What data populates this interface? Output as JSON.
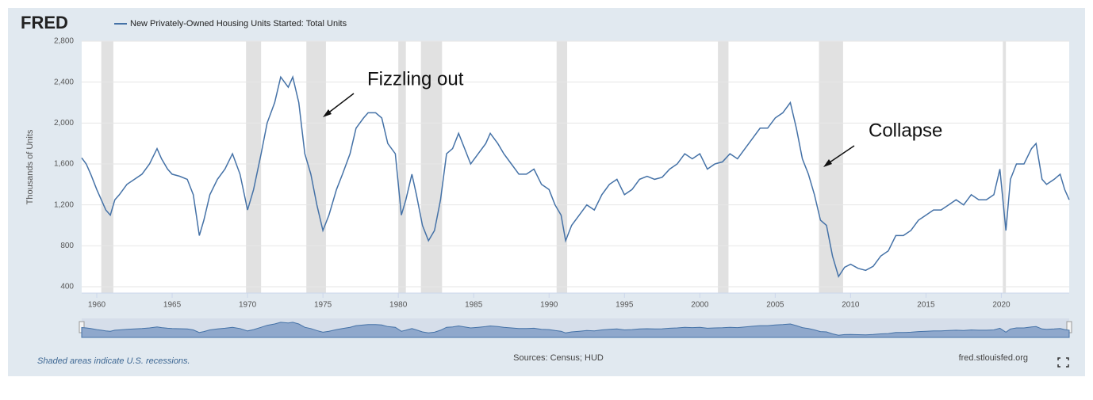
{
  "logo": "FRED",
  "chart_data": {
    "type": "line",
    "legend": "New Privately-Owned Housing Units Started: Total Units",
    "ylabel": "Thousands of Units",
    "color": "#4572a7",
    "grid": true,
    "xlim": [
      1959,
      2024.5
    ],
    "xticks": [
      1960,
      1965,
      1970,
      1975,
      1980,
      1985,
      1990,
      1995,
      2000,
      2005,
      2010,
      2015,
      2020
    ],
    "ylim": [
      400,
      2800
    ],
    "yticks": [
      400,
      800,
      {
        "value": 1200,
        "label": "1,200"
      },
      {
        "value": 1600,
        "label": "1,600"
      },
      {
        "value": 2000,
        "label": "2,000"
      },
      {
        "value": 2400,
        "label": "2,400"
      },
      {
        "value": 2800,
        "label": "2,800"
      }
    ],
    "recessions": [
      [
        1960.3,
        1961.1
      ],
      [
        1969.9,
        1970.9
      ],
      [
        1973.9,
        1975.2
      ],
      [
        1980.0,
        1980.5
      ],
      [
        1981.5,
        1982.9
      ],
      [
        1990.5,
        1991.2
      ],
      [
        2001.2,
        2001.9
      ],
      [
        2007.9,
        2009.5
      ],
      [
        2020.1,
        2020.3
      ]
    ],
    "annotations": [
      {
        "text": "Fizzling out"
      },
      {
        "text": "Collapse"
      }
    ],
    "x": [
      1959.0,
      1959.3,
      1959.6,
      1960.0,
      1960.3,
      1960.6,
      1960.9,
      1961.2,
      1961.5,
      1962.0,
      1962.5,
      1963.0,
      1963.5,
      1964.0,
      1964.3,
      1964.7,
      1965.0,
      1965.5,
      1966.0,
      1966.4,
      1966.8,
      1967.1,
      1967.5,
      1968.0,
      1968.5,
      1969.0,
      1969.5,
      1970.0,
      1970.4,
      1970.9,
      1971.3,
      1971.8,
      1972.2,
      1972.7,
      1973.0,
      1973.4,
      1973.8,
      1974.2,
      1974.6,
      1975.0,
      1975.4,
      1975.9,
      1976.3,
      1976.8,
      1977.2,
      1977.7,
      1978.0,
      1978.5,
      1978.9,
      1979.3,
      1979.8,
      1980.2,
      1980.5,
      1980.9,
      1981.2,
      1981.6,
      1982.0,
      1982.4,
      1982.8,
      1983.2,
      1983.6,
      1984.0,
      1984.4,
      1984.8,
      1985.3,
      1985.8,
      1986.1,
      1986.6,
      1987.0,
      1987.5,
      1988.0,
      1988.5,
      1989.0,
      1989.5,
      1990.0,
      1990.4,
      1990.8,
      1991.1,
      1991.5,
      1992.0,
      1992.5,
      1993.0,
      1993.5,
      1994.0,
      1994.5,
      1995.0,
      1995.5,
      1996.0,
      1996.5,
      1997.0,
      1997.5,
      1998.0,
      1998.5,
      1999.0,
      1999.5,
      2000.0,
      2000.5,
      2001.0,
      2001.5,
      2002.0,
      2002.5,
      2003.0,
      2003.5,
      2004.0,
      2004.5,
      2005.0,
      2005.5,
      2006.0,
      2006.4,
      2006.8,
      2007.2,
      2007.6,
      2008.0,
      2008.4,
      2008.8,
      2009.2,
      2009.6,
      2010.0,
      2010.5,
      2011.0,
      2011.5,
      2012.0,
      2012.5,
      2013.0,
      2013.5,
      2014.0,
      2014.5,
      2015.0,
      2015.5,
      2016.0,
      2016.5,
      2017.0,
      2017.5,
      2018.0,
      2018.5,
      2019.0,
      2019.5,
      2019.9,
      2020.3,
      2020.6,
      2021.0,
      2021.5,
      2022.0,
      2022.3,
      2022.7,
      2023.0,
      2023.5,
      2023.9,
      2024.2,
      2024.5
    ],
    "values": [
      1660,
      1600,
      1500,
      1350,
      1250,
      1150,
      1100,
      1250,
      1300,
      1400,
      1450,
      1500,
      1600,
      1750,
      1650,
      1550,
      1500,
      1480,
      1450,
      1300,
      900,
      1050,
      1300,
      1450,
      1550,
      1700,
      1500,
      1150,
      1350,
      1700,
      2000,
      2200,
      2450,
      2350,
      2450,
      2200,
      1700,
      1500,
      1200,
      950,
      1100,
      1350,
      1500,
      1700,
      1950,
      2050,
      2100,
      2100,
      2050,
      1800,
      1700,
      1100,
      1250,
      1500,
      1300,
      1000,
      850,
      950,
      1250,
      1700,
      1750,
      1900,
      1750,
      1600,
      1700,
      1800,
      1900,
      1800,
      1700,
      1600,
      1500,
      1500,
      1550,
      1400,
      1350,
      1200,
      1100,
      850,
      1000,
      1100,
      1200,
      1150,
      1300,
      1400,
      1450,
      1300,
      1350,
      1450,
      1480,
      1450,
      1470,
      1550,
      1600,
      1700,
      1650,
      1700,
      1550,
      1600,
      1620,
      1700,
      1650,
      1750,
      1850,
      1950,
      1950,
      2050,
      2100,
      2200,
      1950,
      1650,
      1500,
      1300,
      1050,
      1000,
      700,
      500,
      590,
      620,
      580,
      560,
      600,
      700,
      750,
      900,
      900,
      950,
      1050,
      1100,
      1150,
      1150,
      1200,
      1250,
      1200,
      1300,
      1250,
      1250,
      1300,
      1550,
      950,
      1450,
      1600,
      1600,
      1750,
      1800,
      1450,
      1400,
      1450,
      1500,
      1350,
      1250
    ]
  },
  "footer": {
    "note": "Shaded areas indicate U.S. recessions.",
    "sources": "Sources: Census; HUD",
    "site": "fred.stlouisfed.org"
  }
}
